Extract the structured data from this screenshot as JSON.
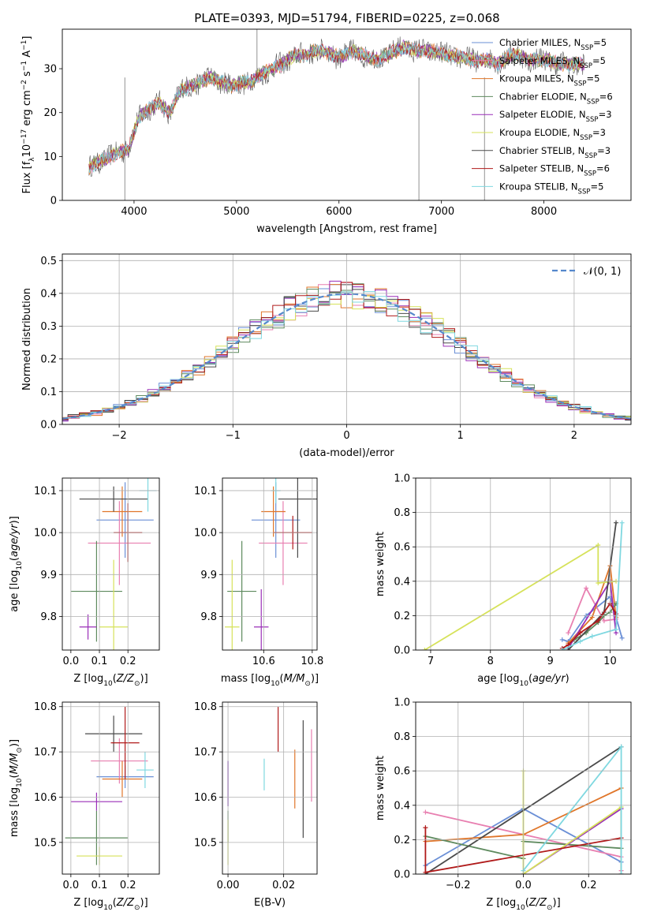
{
  "figure": {
    "title": "PLATE=0393, MJD=51794, FIBERID=0225, z=0.068"
  },
  "models": [
    {
      "label": "Chabrier MILES",
      "nssp": "5",
      "color": "#6a8fd6"
    },
    {
      "label": "Salpeter MILES",
      "nssp": "5",
      "color": "#e87fb0"
    },
    {
      "label": "Kroupa MILES",
      "nssp": "5",
      "color": "#e0762a"
    },
    {
      "label": "Chabrier ELODIE",
      "nssp": "6",
      "color": "#5e8a5e"
    },
    {
      "label": "Salpeter ELODIE",
      "nssp": "3",
      "color": "#9a2fb8"
    },
    {
      "label": "Kroupa ELODIE",
      "nssp": "3",
      "color": "#d6e25a"
    },
    {
      "label": "Chabrier STELIB",
      "nssp": "3",
      "color": "#4a4a4a"
    },
    {
      "label": "Salpeter STELIB",
      "nssp": "6",
      "color": "#b01a1a"
    },
    {
      "label": "Kroupa STELIB",
      "nssp": "5",
      "color": "#7fd8e0"
    }
  ],
  "chart_data": [
    {
      "id": "spectrum",
      "type": "line",
      "xlabel": "wavelength [Angstrom, rest frame]",
      "ylabel": "Flux [f",
      "xlim": [
        3300,
        8850
      ],
      "ylim": [
        0,
        39
      ],
      "xticks": [
        4000,
        5000,
        6000,
        7000,
        8000
      ],
      "yticks": [
        0,
        10,
        20,
        30
      ],
      "legend": "upper right",
      "grid": false,
      "x": [
        3550,
        3650,
        3750,
        3850,
        3950,
        4050,
        4150,
        4250,
        4350,
        4450,
        4550,
        4650,
        4750,
        4850,
        4950,
        5050,
        5150,
        5250,
        5350,
        5450,
        5550,
        5650,
        5750,
        5850,
        5950,
        6050,
        6150,
        6250,
        6350,
        6450,
        6550,
        6650,
        6750,
        6850,
        6950,
        7050,
        7150,
        7250,
        7350,
        7450,
        7550,
        7650,
        7750,
        7850,
        7950,
        8050,
        8150,
        8250,
        8350
      ],
      "y": [
        7,
        9,
        9.5,
        11,
        12,
        19,
        21,
        22,
        20,
        25,
        26,
        27,
        28,
        27,
        26,
        27,
        27,
        29,
        30,
        31,
        33,
        33,
        34,
        34,
        33,
        33,
        34,
        33,
        32,
        33,
        34,
        35,
        34,
        34,
        34,
        33,
        33,
        32,
        32,
        32,
        31,
        33,
        33,
        32,
        32,
        32,
        31,
        31,
        31
      ],
      "features": [
        {
          "x": 3910,
          "y": 0
        },
        {
          "x": 5200,
          "y": 39
        },
        {
          "x": 6780,
          "y": 0
        },
        {
          "x": 7420,
          "y": 0
        }
      ]
    },
    {
      "id": "residuals",
      "type": "histogram",
      "xlabel": "(data-model)/error",
      "ylabel": "Normed distribution",
      "xlim": [
        -2.5,
        2.5
      ],
      "ylim": [
        0,
        0.52
      ],
      "xticks": [
        -2,
        -1,
        0,
        1,
        2
      ],
      "yticks": [
        0.0,
        0.1,
        0.2,
        0.3,
        0.4,
        0.5
      ],
      "grid": true,
      "legend": "upper right",
      "reference_curve": "𝒩(0, 1)",
      "bin_width": 0.1
    },
    {
      "id": "age-vs-Z",
      "type": "errorbar",
      "xlabel": "Z [log",
      "ylabel": "age  [log",
      "xlim": [
        -0.03,
        0.31
      ],
      "ylim": [
        9.72,
        10.13
      ],
      "xticks": [
        0.0,
        0.1,
        0.2
      ],
      "yticks": [
        9.8,
        9.9,
        10.0,
        10.1
      ],
      "grid": true,
      "points": [
        {
          "x": 0.19,
          "y": 10.03,
          "xerr": 0.1,
          "yerr": 0.09
        },
        {
          "x": 0.17,
          "y": 9.975,
          "xerr": 0.11,
          "yerr": 0.1
        },
        {
          "x": 0.18,
          "y": 10.05,
          "xerr": 0.07,
          "yerr": 0.06
        },
        {
          "x": 0.09,
          "y": 9.86,
          "xerr": 0.09,
          "yerr": 0.12
        },
        {
          "x": 0.06,
          "y": 9.775,
          "xerr": 0.03,
          "yerr": 0.03
        },
        {
          "x": 0.15,
          "y": 9.775,
          "xerr": 0.05,
          "yerr": 0.16
        },
        {
          "x": 0.15,
          "y": 10.08,
          "xerr": 0.12,
          "yerr": 0.03
        },
        {
          "x": 0.2,
          "y": 10.0,
          "xerr": 0.05,
          "yerr": 0.07
        },
        {
          "x": 0.27,
          "y": 10.1,
          "xerr": 0.03,
          "yerr": 0.05
        }
      ]
    },
    {
      "id": "age-vs-mass",
      "type": "errorbar",
      "xlabel": "mass [log",
      "ylabel": "",
      "xlim": [
        10.43,
        10.82
      ],
      "ylim": [
        9.72,
        10.13
      ],
      "xticks": [
        10.6,
        10.8
      ],
      "yticks": [
        9.8,
        9.9,
        10.0,
        10.1
      ],
      "grid": true,
      "points": [
        {
          "x": 10.65,
          "y": 10.03,
          "xerr": 0.1,
          "yerr": 0.09
        },
        {
          "x": 10.68,
          "y": 9.975,
          "xerr": 0.1,
          "yerr": 0.1
        },
        {
          "x": 10.64,
          "y": 10.05,
          "xerr": 0.05,
          "yerr": 0.06
        },
        {
          "x": 10.51,
          "y": 9.86,
          "xerr": 0.06,
          "yerr": 0.12
        },
        {
          "x": 10.59,
          "y": 9.775,
          "xerr": 0.03,
          "yerr": 0.09
        },
        {
          "x": 10.47,
          "y": 9.775,
          "xerr": 0.03,
          "yerr": 0.16
        },
        {
          "x": 10.74,
          "y": 10.08,
          "xerr": 0.08,
          "yerr": 0.14
        },
        {
          "x": 10.72,
          "y": 10.0,
          "xerr": 0.08,
          "yerr": 0.04
        },
        {
          "x": 10.65,
          "y": 10.1,
          "xerr": 0.02,
          "yerr": 0.03
        }
      ]
    },
    {
      "id": "mass-weight-vs-age",
      "type": "line",
      "xlabel": "age  [log",
      "ylabel": "mass weight",
      "xlim": [
        6.75,
        10.35
      ],
      "ylim": [
        0,
        1.0
      ],
      "xticks": [
        7,
        8,
        9,
        10
      ],
      "yticks": [
        0.0,
        0.2,
        0.4,
        0.6,
        0.8,
        1.0
      ],
      "grid": true,
      "series": [
        {
          "x": [
            9.2,
            9.3,
            9.6,
            10.0,
            10.2
          ],
          "y": [
            0.06,
            0.05,
            0.2,
            0.31,
            0.07
          ]
        },
        {
          "x": [
            9.3,
            9.6,
            9.9,
            10.1
          ],
          "y": [
            0.1,
            0.36,
            0.17,
            0.18
          ]
        },
        {
          "x": [
            9.3,
            9.7,
            10.0,
            10.1
          ],
          "y": [
            0.04,
            0.19,
            0.49,
            0.19
          ]
        },
        {
          "x": [
            9.4,
            9.6,
            9.8,
            9.9,
            10.0,
            10.1
          ],
          "y": [
            0.06,
            0.1,
            0.16,
            0.2,
            0.22,
            0.27
          ]
        },
        {
          "x": [
            9.3,
            10.0,
            10.1
          ],
          "y": [
            0.01,
            0.4,
            0.1
          ]
        },
        {
          "x": [
            6.9,
            9.8,
            9.8,
            10.1
          ],
          "y": [
            0.0,
            0.61,
            0.39,
            0.4
          ]
        },
        {
          "x": [
            9.3,
            9.9,
            10.1
          ],
          "y": [
            0.0,
            0.22,
            0.74
          ]
        },
        {
          "x": [
            9.2,
            9.3,
            9.5,
            9.8,
            10.0,
            10.1
          ],
          "y": [
            0.01,
            0.03,
            0.1,
            0.17,
            0.27,
            0.21
          ]
        },
        {
          "x": [
            9.2,
            9.5,
            9.7,
            10.1,
            10.2
          ],
          "y": [
            0.0,
            0.05,
            0.08,
            0.12,
            0.74
          ]
        }
      ]
    },
    {
      "id": "mass-vs-Z",
      "type": "errorbar",
      "xlabel": "Z [log",
      "ylabel": "mass [log",
      "xlim": [
        -0.03,
        0.31
      ],
      "ylim": [
        10.43,
        10.81
      ],
      "xticks": [
        0.0,
        0.1,
        0.2
      ],
      "yticks": [
        10.5,
        10.6,
        10.7,
        10.8
      ],
      "grid": true,
      "points": [
        {
          "x": 0.19,
          "y": 10.645,
          "xerr": 0.1,
          "yerr": 0.025
        },
        {
          "x": 0.17,
          "y": 10.68,
          "xerr": 0.1,
          "yerr": 0.05
        },
        {
          "x": 0.18,
          "y": 10.64,
          "xerr": 0.07,
          "yerr": 0.04
        },
        {
          "x": 0.09,
          "y": 10.51,
          "xerr": 0.11,
          "yerr": 0.06
        },
        {
          "x": 0.09,
          "y": 10.59,
          "xerr": 0.09,
          "yerr": 0.02
        },
        {
          "x": 0.1,
          "y": 10.47,
          "xerr": 0.08,
          "yerr": 0.02
        },
        {
          "x": 0.15,
          "y": 10.74,
          "xerr": 0.1,
          "yerr": 0.04
        },
        {
          "x": 0.19,
          "y": 10.72,
          "xerr": 0.05,
          "yerr": 0.08
        },
        {
          "x": 0.26,
          "y": 10.66,
          "xerr": 0.03,
          "yerr": 0.04
        }
      ]
    },
    {
      "id": "mass-vs-ebv",
      "type": "errorbar",
      "xlabel": "E(B-V)",
      "ylabel": "",
      "xlim": [
        -0.002,
        0.032
      ],
      "ylim": [
        10.43,
        10.81
      ],
      "xticks": [
        0.0,
        0.02
      ],
      "yticks": [
        10.5,
        10.6,
        10.7,
        10.8
      ],
      "grid": true,
      "points": [
        {
          "x": 0.0,
          "y": 10.63,
          "xerr": 0,
          "yerr": 0.05
        },
        {
          "x": 0.03,
          "y": 10.67,
          "xerr": 0,
          "yerr": 0.08
        },
        {
          "x": 0.024,
          "y": 10.64,
          "xerr": 0,
          "yerr": 0.065
        },
        {
          "x": 0.0,
          "y": 10.535,
          "xerr": 0,
          "yerr": 0.035
        },
        {
          "x": 0.0,
          "y": 10.63,
          "xerr": 0,
          "yerr": 0.05
        },
        {
          "x": 0.0,
          "y": 10.5,
          "xerr": 0,
          "yerr": 0.05
        },
        {
          "x": 0.027,
          "y": 10.64,
          "xerr": 0,
          "yerr": 0.13
        },
        {
          "x": 0.018,
          "y": 10.75,
          "xerr": 0,
          "yerr": 0.05
        },
        {
          "x": 0.013,
          "y": 10.65,
          "xerr": 0,
          "yerr": 0.035
        }
      ]
    },
    {
      "id": "mass-weight-vs-Z",
      "type": "line",
      "xlabel": "Z [log",
      "ylabel": "mass weight",
      "xlim": [
        -0.33,
        0.33
      ],
      "ylim": [
        0,
        1.0
      ],
      "xticks": [
        -0.2,
        0.0,
        0.2
      ],
      "yticks": [
        0.0,
        0.2,
        0.4,
        0.6,
        0.8,
        1.0
      ],
      "grid": true,
      "series": [
        {
          "x": [
            -0.3,
            0.0,
            0.3
          ],
          "y": [
            0.05,
            0.38,
            0.07
          ]
        },
        {
          "x": [
            -0.3,
            0.3,
            0.3
          ],
          "y": [
            0.36,
            0.1,
            0.02
          ]
        },
        {
          "x": [
            -0.3,
            0.0,
            0.3
          ],
          "y": [
            0.19,
            0.23,
            0.5
          ]
        },
        {
          "x": [
            -0.3,
            0.0,
            0.0,
            0.3
          ],
          "y": [
            0.22,
            0.09,
            0.19,
            0.15
          ]
        },
        {
          "x": [
            0.0,
            0.3,
            0.3
          ],
          "y": [
            0.0,
            0.38,
            0.0
          ]
        },
        {
          "x": [
            0.0,
            0.0,
            0.3,
            0.3
          ],
          "y": [
            0.6,
            0.0,
            0.39,
            0.0
          ]
        },
        {
          "x": [
            -0.3,
            0.3
          ],
          "y": [
            0.0,
            0.74
          ]
        },
        {
          "x": [
            -0.3,
            -0.3,
            0.3
          ],
          "y": [
            0.27,
            0.01,
            0.21
          ]
        },
        {
          "x": [
            0.0,
            0.3,
            0.3
          ],
          "y": [
            0.02,
            0.74,
            0.0
          ]
        }
      ]
    }
  ]
}
